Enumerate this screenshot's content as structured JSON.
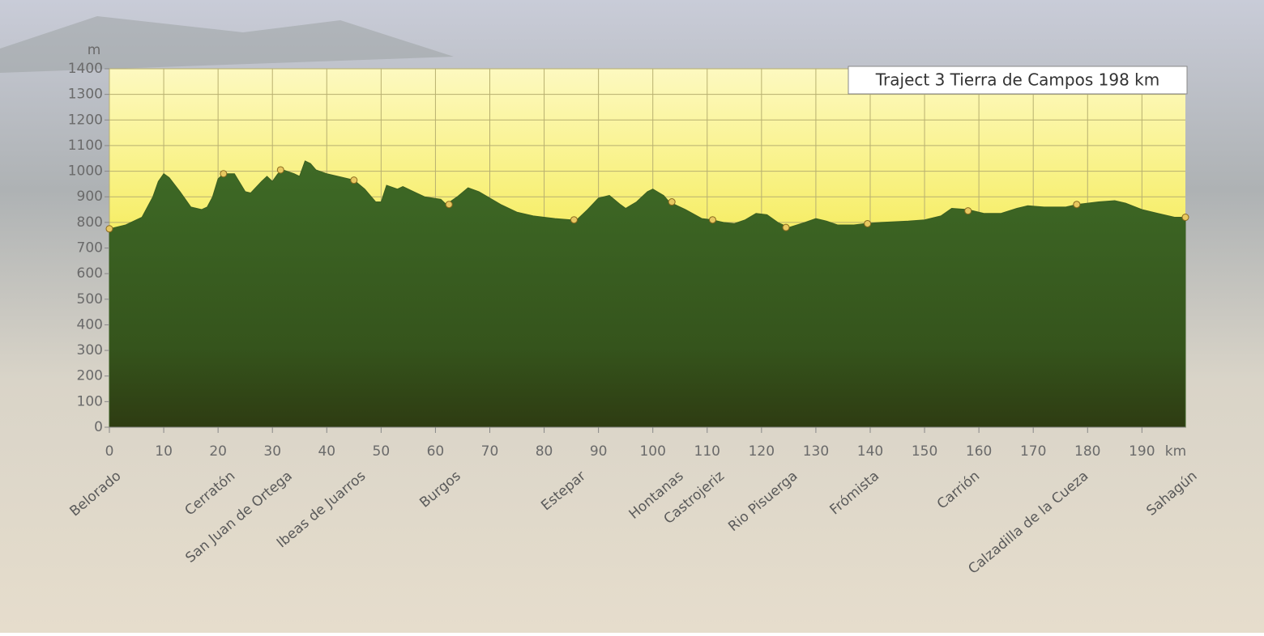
{
  "chart_data": {
    "type": "area",
    "title": "Traject 3 Tierra de Campos 198 km",
    "y_label": "m",
    "x_label": "km",
    "x": [
      0,
      3,
      6,
      8,
      9,
      10,
      11,
      13,
      15,
      17,
      18,
      19,
      20,
      21,
      23,
      25,
      26,
      28,
      29,
      30,
      31,
      32,
      34,
      35,
      36,
      37,
      38,
      40,
      42,
      45,
      47,
      49,
      50,
      51,
      53,
      54,
      56,
      58,
      61,
      62,
      64,
      66,
      68,
      72,
      75,
      78,
      82,
      85,
      86,
      88,
      90,
      92,
      94,
      95,
      97,
      99,
      100,
      102,
      103,
      106,
      109,
      111,
      113,
      115,
      117,
      119,
      121,
      123,
      125,
      128,
      130,
      132,
      134,
      137,
      139,
      142,
      147,
      150,
      153,
      155,
      158,
      161,
      164,
      167,
      169,
      172,
      176,
      178,
      182,
      185,
      187,
      190,
      193,
      196,
      198
    ],
    "values": [
      775,
      790,
      820,
      900,
      960,
      990,
      975,
      920,
      860,
      850,
      860,
      900,
      970,
      990,
      990,
      920,
      915,
      960,
      980,
      960,
      990,
      1005,
      990,
      980,
      1040,
      1030,
      1005,
      990,
      980,
      965,
      930,
      880,
      880,
      945,
      930,
      940,
      920,
      900,
      890,
      870,
      900,
      935,
      920,
      870,
      840,
      825,
      815,
      810,
      810,
      850,
      895,
      905,
      870,
      855,
      880,
      920,
      930,
      905,
      880,
      850,
      815,
      810,
      800,
      795,
      810,
      835,
      830,
      800,
      780,
      800,
      815,
      805,
      790,
      790,
      795,
      800,
      805,
      810,
      825,
      855,
      850,
      835,
      835,
      855,
      865,
      860,
      860,
      870,
      880,
      885,
      875,
      850,
      835,
      820,
      820
    ],
    "color": "#3a5e22",
    "towns": {
      "names": [
        "Belorado",
        "Cerratón",
        "San Juan de Ortega",
        "Ibeas de Juarros",
        "Burgos",
        "Estepar",
        "Hontanas",
        "Castrojeriz",
        "Rio Pisuerga",
        "Frómista",
        "Carrión",
        "Calzadilla de la Cueza",
        "Sahagún"
      ],
      "x": [
        0,
        21,
        31.5,
        45,
        62.5,
        85.5,
        103.5,
        111,
        124.5,
        139.5,
        158,
        178,
        198
      ],
      "values": [
        775,
        990,
        1005,
        965,
        870,
        810,
        880,
        810,
        780,
        795,
        845,
        870,
        820
      ]
    },
    "xlim": [
      0,
      198
    ],
    "ylim": [
      0,
      1400
    ],
    "xticks": [
      0,
      10,
      20,
      30,
      40,
      50,
      60,
      70,
      80,
      90,
      100,
      110,
      120,
      130,
      140,
      150,
      160,
      170,
      180,
      190
    ],
    "yticks": [
      0,
      100,
      200,
      300,
      400,
      500,
      600,
      700,
      800,
      900,
      1000,
      1100,
      1200,
      1300,
      1400
    ],
    "grid": true
  }
}
